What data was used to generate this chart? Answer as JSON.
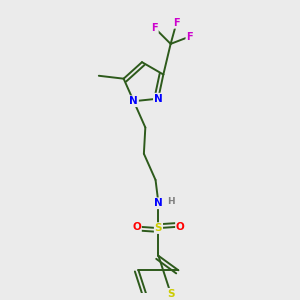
{
  "background_color": "#ebebeb",
  "bond_color": "#2d5a1b",
  "atom_colors": {
    "N": "#0000ff",
    "S_sulfonyl": "#cccc00",
    "S_thiophene": "#cccc00",
    "O": "#ff0000",
    "F": "#cc00cc",
    "H": "#808080",
    "C": "#2d5a1b"
  },
  "figsize": [
    3.0,
    3.0
  ],
  "dpi": 100
}
